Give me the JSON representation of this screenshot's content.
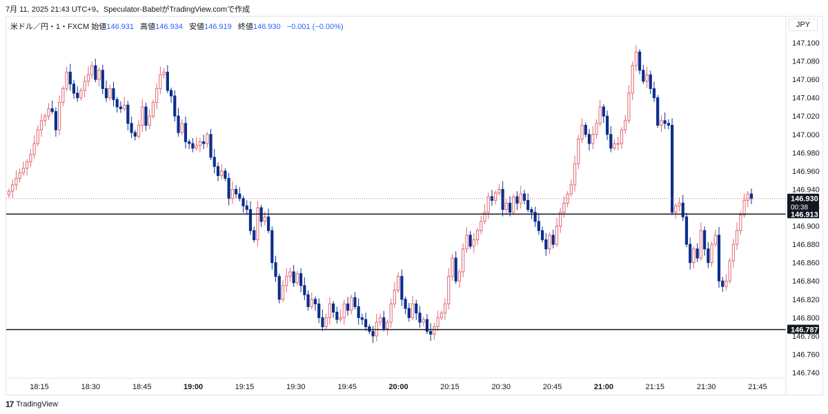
{
  "caption": "7月 11, 2025 21:43 UTC+9、Speculator-BabelがTradingView.comで作成",
  "legend": {
    "symbol": "米ドル／円・1・FXCM",
    "open_label": "始値",
    "open": "146.931",
    "high_label": "高値",
    "high": "146.934",
    "low_label": "安値",
    "low": "146.919",
    "close_label": "終値",
    "close": "146.930",
    "change": "−0.001 (−0.00%)"
  },
  "currency_button": "JPY",
  "brand": {
    "logo": "17",
    "name": "TradingView"
  },
  "colors": {
    "up": "#e06670",
    "down": "#0c2e8c",
    "hline": "#131722",
    "axis_text": "#131722"
  },
  "chart_data": {
    "type": "candlestick",
    "y_ticks": [
      "147.100",
      "147.080",
      "147.060",
      "147.040",
      "147.020",
      "147.000",
      "146.980",
      "146.960",
      "146.940",
      "146.920",
      "146.900",
      "146.880",
      "146.860",
      "146.840",
      "146.820",
      "146.800",
      "146.780",
      "146.760",
      "146.740"
    ],
    "x_ticks": [
      {
        "label": "18:15",
        "bold": false
      },
      {
        "label": "18:30",
        "bold": false
      },
      {
        "label": "18:45",
        "bold": false
      },
      {
        "label": "19:00",
        "bold": true
      },
      {
        "label": "19:15",
        "bold": false
      },
      {
        "label": "19:30",
        "bold": false
      },
      {
        "label": "19:45",
        "bold": false
      },
      {
        "label": "20:00",
        "bold": true
      },
      {
        "label": "20:15",
        "bold": false
      },
      {
        "label": "20:30",
        "bold": false
      },
      {
        "label": "20:45",
        "bold": false
      },
      {
        "label": "21:00",
        "bold": true
      },
      {
        "label": "21:15",
        "bold": false
      },
      {
        "label": "21:30",
        "bold": false
      },
      {
        "label": "21:45",
        "bold": false
      }
    ],
    "horizontal_lines": [
      {
        "value": 146.913,
        "label": "146.913"
      },
      {
        "value": 146.787,
        "label": "146.787"
      }
    ],
    "last_price": {
      "value": 146.93,
      "label": "146.930",
      "countdown": "00:38"
    },
    "closes": [
      146.938,
      146.945,
      146.952,
      146.958,
      146.963,
      146.97,
      146.978,
      146.99,
      147.005,
      147.015,
      147.02,
      147.028,
      147.025,
      147.005,
      147.035,
      147.05,
      147.068,
      147.055,
      147.045,
      147.04,
      147.048,
      147.058,
      147.065,
      147.075,
      147.06,
      147.07,
      147.05,
      147.04,
      147.05,
      147.038,
      147.03,
      147.028,
      147.032,
      147.012,
      147.002,
      146.998,
      147.01,
      147.03,
      147.01,
      147.02,
      147.035,
      147.05,
      147.065,
      147.068,
      147.048,
      147.042,
      147.02,
      147.002,
      147.012,
      146.992,
      146.99,
      146.985,
      146.988,
      146.992,
      146.99,
      147.0,
      146.975,
      146.965,
      146.955,
      146.96,
      146.952,
      146.93,
      146.94,
      146.935,
      146.93,
      146.922,
      146.918,
      146.895,
      146.885,
      146.92,
      146.905,
      146.91,
      146.895,
      146.86,
      146.845,
      146.82,
      146.835,
      146.845,
      146.85,
      146.838,
      146.848,
      146.835,
      146.825,
      146.812,
      146.82,
      146.815,
      146.8,
      146.79,
      146.8,
      146.815,
      146.806,
      146.798,
      146.8,
      146.815,
      146.808,
      146.822,
      146.812,
      146.8,
      146.798,
      146.79,
      146.785,
      146.78,
      146.795,
      146.8,
      146.788,
      146.795,
      146.815,
      146.83,
      146.845,
      146.82,
      146.81,
      146.8,
      146.815,
      146.805,
      146.795,
      146.798,
      146.785,
      146.782,
      146.79,
      146.8,
      146.805,
      146.815,
      146.845,
      146.865,
      146.84,
      146.85,
      146.875,
      146.89,
      146.878,
      146.885,
      146.895,
      146.905,
      146.915,
      146.932,
      146.928,
      146.936,
      146.94,
      146.918,
      146.925,
      146.915,
      146.932,
      146.925,
      146.935,
      146.928,
      146.918,
      146.915,
      146.905,
      146.895,
      146.885,
      146.875,
      146.89,
      146.88,
      146.9,
      146.915,
      146.925,
      146.935,
      146.945,
      146.968,
      146.995,
      147.01,
      147.0,
      146.99,
      147.0,
      147.012,
      147.03,
      147.02,
      147.0,
      146.985,
      146.99,
      146.99,
      147.005,
      147.015,
      147.045,
      147.075,
      147.09,
      147.07,
      147.058,
      147.065,
      147.05,
      147.04,
      147.01,
      147.015,
      147.012,
      147.01,
      146.915,
      146.922,
      146.925,
      146.91,
      146.88,
      146.86,
      146.875,
      146.865,
      146.895,
      146.875,
      146.86,
      146.88,
      146.89,
      146.84,
      146.834,
      146.84,
      146.862,
      146.88,
      146.895,
      146.912,
      146.928,
      146.935,
      146.93
    ]
  }
}
